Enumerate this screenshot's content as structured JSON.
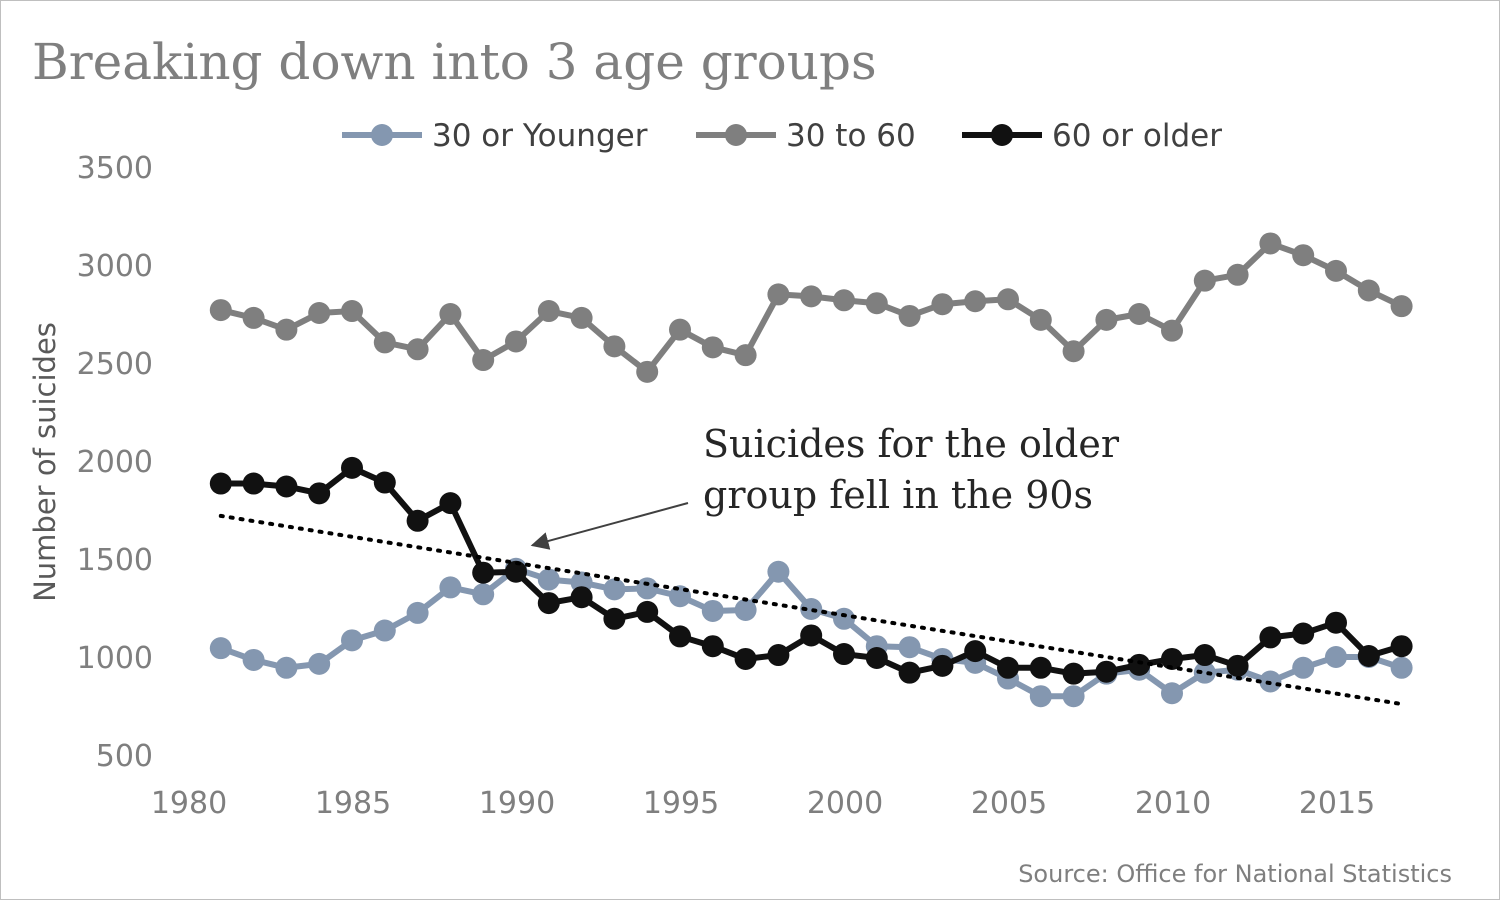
{
  "chart_data": {
    "type": "line",
    "title": "Breaking down into 3 age groups",
    "xlabel": "",
    "ylabel": "Number of suicides",
    "xlim": [
      1980,
      2017.5
    ],
    "ylim": [
      500,
      3500
    ],
    "x_ticks": [
      1980,
      1985,
      1990,
      1995,
      2000,
      2005,
      2010,
      2015
    ],
    "y_ticks": [
      500,
      1000,
      1500,
      2000,
      2500,
      3000,
      3500
    ],
    "grid": false,
    "legend_position": "top",
    "x": [
      1981,
      1982,
      1983,
      1984,
      1985,
      1986,
      1987,
      1988,
      1989,
      1990,
      1991,
      1992,
      1993,
      1994,
      1995,
      1996,
      1997,
      1998,
      1999,
      2000,
      2001,
      2002,
      2003,
      2004,
      2005,
      2006,
      2007,
      2008,
      2009,
      2010,
      2011,
      2012,
      2013,
      2014,
      2015,
      2016,
      2017
    ],
    "series": [
      {
        "name": "30 or Younger",
        "color": "#8497b0",
        "values": [
          1045,
          985,
          945,
          965,
          1085,
          1135,
          1225,
          1355,
          1320,
          1450,
          1395,
          1380,
          1345,
          1350,
          1310,
          1235,
          1240,
          1435,
          1245,
          1195,
          1055,
          1050,
          990,
          970,
          890,
          800,
          800,
          915,
          935,
          815,
          920,
          935,
          875,
          945,
          1000,
          1000,
          945
        ]
      },
      {
        "name": "30 to 60",
        "color": "#7f7f7f",
        "values": [
          2770,
          2730,
          2670,
          2755,
          2765,
          2605,
          2570,
          2750,
          2515,
          2610,
          2765,
          2730,
          2585,
          2455,
          2670,
          2580,
          2540,
          2850,
          2840,
          2820,
          2805,
          2740,
          2800,
          2815,
          2825,
          2720,
          2560,
          2720,
          2750,
          2665,
          2920,
          2950,
          3110,
          3050,
          2970,
          2870,
          2790
        ]
      },
      {
        "name": "60 or older",
        "color": "#111111",
        "values": [
          1885,
          1885,
          1870,
          1835,
          1965,
          1890,
          1695,
          1785,
          1430,
          1435,
          1275,
          1305,
          1195,
          1230,
          1105,
          1055,
          990,
          1010,
          1110,
          1015,
          995,
          920,
          955,
          1030,
          945,
          945,
          915,
          925,
          960,
          990,
          1010,
          955,
          1100,
          1120,
          1175,
          1005,
          1055
        ]
      }
    ],
    "trendline": {
      "series": "60 or older",
      "style": "dotted",
      "color": "#000000",
      "start": [
        1981,
        1720
      ],
      "end": [
        2017,
        760
      ]
    },
    "annotation": {
      "lines": [
        "Suicides for the older",
        "group fell in the 90s"
      ],
      "arrow_target": [
        1990.5,
        1570
      ]
    },
    "source": "Source: Office for National Statistics"
  }
}
